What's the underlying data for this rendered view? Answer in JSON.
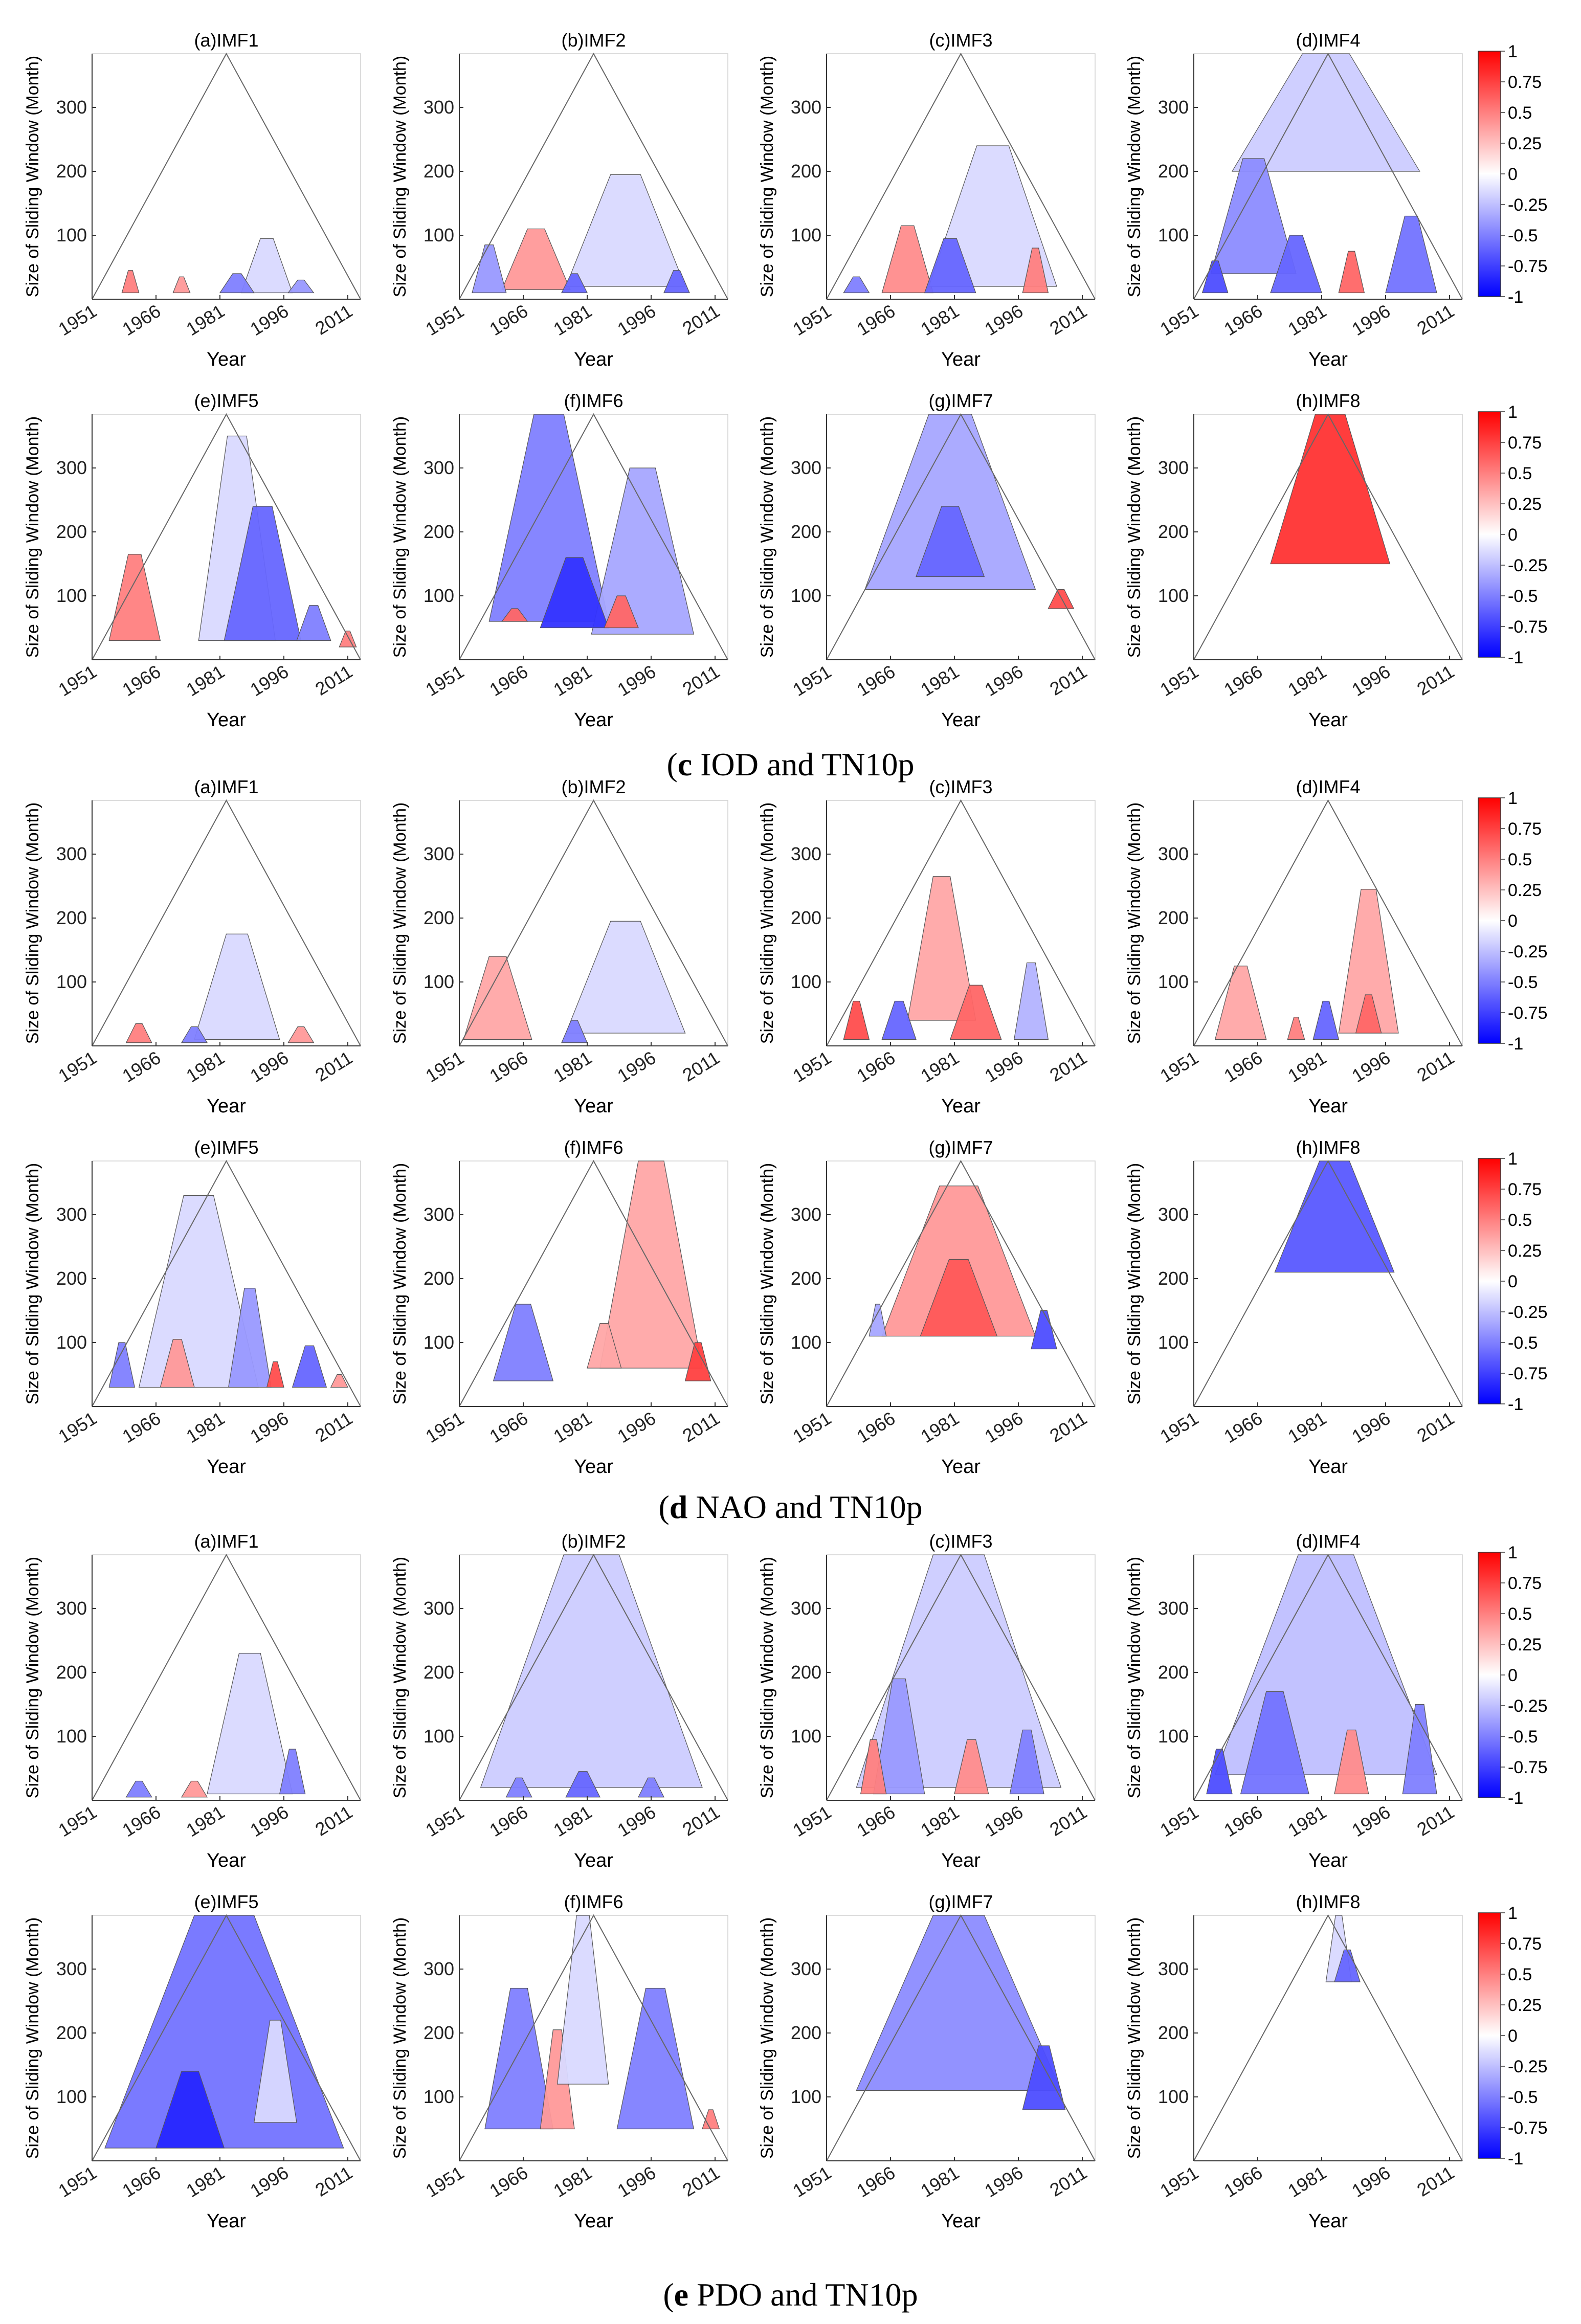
{
  "figure": {
    "panel_titles": [
      "(a)IMF1",
      "(b)IMF2",
      "(c)IMF3",
      "(d)IMF4",
      "(e)IMF5",
      "(f)IMF6",
      "(g)IMF7",
      "(h)IMF8"
    ],
    "xlabel": "Year",
    "ylabel": "Size of Sliding Window (Month)",
    "x_ticks": [
      "1951",
      "1966",
      "1981",
      "1996",
      "2011"
    ],
    "y_ticks": [
      "100",
      "200",
      "300"
    ],
    "colorbar_ticks": [
      "1",
      "0.75",
      "0.5",
      "0.25",
      "0",
      "-0.25",
      "-0.5",
      "-0.75",
      "-1"
    ],
    "colors": {
      "positive": "#ff0000",
      "negative": "#0000ff",
      "neutral": "#ffffff",
      "outline": "#555555"
    }
  },
  "captions": [
    {
      "letter": "c",
      "text": " IOD and TN10p"
    },
    {
      "letter": "d",
      "text": " NAO and TN10p"
    },
    {
      "letter": "e",
      "text": " PDO and TN10p"
    }
  ],
  "chart_data": [
    {
      "type": "heatmap",
      "group": "(c) IOD and TN10p",
      "description": "Triangular sliding-window correlation maps between IMF components of IOD and TN10p",
      "xlabel": "Year",
      "ylabel": "Size of Sliding Window (Month)",
      "xlim": [
        1951,
        2014
      ],
      "ylim": [
        0,
        384
      ],
      "clim": [
        -1,
        1
      ],
      "panels": [
        {
          "title": "(a)IMF1",
          "regions": [
            {
              "cx": 1960,
              "w": 2,
              "base": 10,
              "top": 45,
              "r": 0.5
            },
            {
              "cx": 1972,
              "w": 2,
              "base": 10,
              "top": 35,
              "r": 0.4
            },
            {
              "cx": 1992,
              "w": 6,
              "base": 10,
              "top": 95,
              "r": -0.15
            },
            {
              "cx": 1985,
              "w": 4,
              "base": 10,
              "top": 40,
              "r": -0.5
            },
            {
              "cx": 2000,
              "w": 3,
              "base": 10,
              "top": 30,
              "r": -0.4
            }
          ]
        },
        {
          "title": "(b)IMF2",
          "regions": [
            {
              "cx": 1969,
              "w": 8,
              "base": 15,
              "top": 110,
              "r": 0.4
            },
            {
              "cx": 1990,
              "w": 14,
              "base": 20,
              "top": 195,
              "r": -0.15
            },
            {
              "cx": 1958,
              "w": 4,
              "base": 10,
              "top": 85,
              "r": -0.4
            },
            {
              "cx": 1978,
              "w": 3,
              "base": 10,
              "top": 40,
              "r": -0.6
            },
            {
              "cx": 2002,
              "w": 3,
              "base": 10,
              "top": 45,
              "r": -0.6
            }
          ]
        },
        {
          "title": "(c)IMF3",
          "regions": [
            {
              "cx": 1970,
              "w": 6,
              "base": 10,
              "top": 115,
              "r": 0.45
            },
            {
              "cx": 1990,
              "w": 15,
              "base": 20,
              "top": 240,
              "r": -0.15
            },
            {
              "cx": 1980,
              "w": 6,
              "base": 10,
              "top": 95,
              "r": -0.6
            },
            {
              "cx": 2000,
              "w": 3,
              "base": 10,
              "top": 80,
              "r": 0.5
            },
            {
              "cx": 1958,
              "w": 3,
              "base": 10,
              "top": 35,
              "r": -0.5
            }
          ]
        },
        {
          "title": "(d)IMF4",
          "regions": [
            {
              "cx": 1982,
              "w": 22,
              "base": 200,
              "top": 384,
              "r": -0.2
            },
            {
              "cx": 1965,
              "w": 10,
              "base": 40,
              "top": 220,
              "r": -0.45
            },
            {
              "cx": 1975,
              "w": 6,
              "base": 10,
              "top": 100,
              "r": -0.6
            },
            {
              "cx": 1988,
              "w": 3,
              "base": 10,
              "top": 75,
              "r": 0.6
            },
            {
              "cx": 2002,
              "w": 6,
              "base": 10,
              "top": 130,
              "r": -0.55
            },
            {
              "cx": 1956,
              "w": 3,
              "base": 10,
              "top": 60,
              "r": -0.7
            }
          ]
        },
        {
          "title": "(e)IMF5",
          "regions": [
            {
              "cx": 1961,
              "w": 6,
              "base": 30,
              "top": 165,
              "r": 0.5
            },
            {
              "cx": 1985,
              "w": 9,
              "base": 30,
              "top": 350,
              "r": -0.15
            },
            {
              "cx": 1991,
              "w": 9,
              "base": 30,
              "top": 240,
              "r": -0.6
            },
            {
              "cx": 2003,
              "w": 4,
              "base": 30,
              "top": 85,
              "r": -0.5
            },
            {
              "cx": 2011,
              "w": 2,
              "base": 20,
              "top": 45,
              "r": 0.5
            }
          ]
        },
        {
          "title": "(f)IMF6",
          "regions": [
            {
              "cx": 1972,
              "w": 14,
              "base": 60,
              "top": 384,
              "r": -0.5
            },
            {
              "cx": 1994,
              "w": 12,
              "base": 40,
              "top": 300,
              "r": -0.35
            },
            {
              "cx": 1978,
              "w": 8,
              "base": 50,
              "top": 160,
              "r": -0.8
            },
            {
              "cx": 1989,
              "w": 4,
              "base": 50,
              "top": 100,
              "r": 0.6
            },
            {
              "cx": 1964,
              "w": 3,
              "base": 60,
              "top": 80,
              "r": 0.6
            }
          ]
        },
        {
          "title": "(g)IMF7",
          "regions": [
            {
              "cx": 1980,
              "w": 20,
              "base": 110,
              "top": 384,
              "r": -0.35
            },
            {
              "cx": 1980,
              "w": 8,
              "base": 130,
              "top": 240,
              "r": -0.6
            },
            {
              "cx": 2006,
              "w": 3,
              "base": 80,
              "top": 110,
              "r": 0.7
            }
          ]
        },
        {
          "title": "(h)IMF8",
          "regions": [
            {
              "cx": 1983,
              "w": 14,
              "base": 150,
              "top": 384,
              "r": 0.8
            }
          ]
        }
      ]
    },
    {
      "type": "heatmap",
      "group": "(d) NAO and TN10p",
      "description": "Triangular sliding-window correlation maps between IMF components of NAO and TN10p",
      "xlabel": "Year",
      "ylabel": "Size of Sliding Window (Month)",
      "xlim": [
        1951,
        2014
      ],
      "ylim": [
        0,
        384
      ],
      "clim": [
        -1,
        1
      ],
      "panels": [
        {
          "title": "(a)IMF1",
          "regions": [
            {
              "cx": 1985,
              "w": 10,
              "base": 10,
              "top": 175,
              "r": -0.15
            },
            {
              "cx": 1962,
              "w": 3,
              "base": 5,
              "top": 35,
              "r": 0.5
            },
            {
              "cx": 1975,
              "w": 3,
              "base": 5,
              "top": 30,
              "r": -0.5
            },
            {
              "cx": 2000,
              "w": 3,
              "base": 5,
              "top": 30,
              "r": 0.4
            }
          ]
        },
        {
          "title": "(b)IMF2",
          "regions": [
            {
              "cx": 1960,
              "w": 8,
              "base": 10,
              "top": 140,
              "r": 0.35
            },
            {
              "cx": 1990,
              "w": 14,
              "base": 20,
              "top": 195,
              "r": -0.15
            },
            {
              "cx": 1978,
              "w": 3,
              "base": 5,
              "top": 40,
              "r": -0.5
            }
          ]
        },
        {
          "title": "(c)IMF3",
          "regions": [
            {
              "cx": 1978,
              "w": 8,
              "base": 40,
              "top": 265,
              "r": 0.35
            },
            {
              "cx": 1986,
              "w": 6,
              "base": 10,
              "top": 95,
              "r": 0.6
            },
            {
              "cx": 1958,
              "w": 3,
              "base": 10,
              "top": 70,
              "r": 0.7
            },
            {
              "cx": 1968,
              "w": 4,
              "base": 10,
              "top": 70,
              "r": -0.6
            },
            {
              "cx": 1999,
              "w": 4,
              "base": 10,
              "top": 130,
              "r": -0.3
            }
          ]
        },
        {
          "title": "(d)IMF4",
          "regions": [
            {
              "cx": 1962,
              "w": 6,
              "base": 10,
              "top": 125,
              "r": 0.35
            },
            {
              "cx": 1992,
              "w": 7,
              "base": 20,
              "top": 245,
              "r": 0.35
            },
            {
              "cx": 1992,
              "w": 3,
              "base": 20,
              "top": 80,
              "r": 0.6
            },
            {
              "cx": 1982,
              "w": 3,
              "base": 10,
              "top": 70,
              "r": -0.6
            },
            {
              "cx": 1975,
              "w": 2,
              "base": 10,
              "top": 45,
              "r": 0.5
            }
          ]
        },
        {
          "title": "(e)IMF5",
          "regions": [
            {
              "cx": 1976,
              "w": 14,
              "base": 30,
              "top": 330,
              "r": -0.15
            },
            {
              "cx": 1988,
              "w": 5,
              "base": 30,
              "top": 185,
              "r": -0.4
            },
            {
              "cx": 1971,
              "w": 4,
              "base": 30,
              "top": 105,
              "r": 0.4
            },
            {
              "cx": 1958,
              "w": 3,
              "base": 30,
              "top": 100,
              "r": -0.5
            },
            {
              "cx": 2002,
              "w": 4,
              "base": 30,
              "top": 95,
              "r": -0.6
            },
            {
              "cx": 1994,
              "w": 2,
              "base": 30,
              "top": 70,
              "r": 0.7
            },
            {
              "cx": 2009,
              "w": 2,
              "base": 30,
              "top": 50,
              "r": 0.4
            }
          ]
        },
        {
          "title": "(f)IMF6",
          "regions": [
            {
              "cx": 1996,
              "w": 12,
              "base": 60,
              "top": 384,
              "r": 0.35
            },
            {
              "cx": 1966,
              "w": 7,
              "base": 40,
              "top": 160,
              "r": -0.5
            },
            {
              "cx": 1985,
              "w": 4,
              "base": 60,
              "top": 130,
              "r": 0.35
            },
            {
              "cx": 2007,
              "w": 3,
              "base": 40,
              "top": 100,
              "r": 0.75
            }
          ]
        },
        {
          "title": "(g)IMF7",
          "regions": [
            {
              "cx": 1982,
              "w": 18,
              "base": 110,
              "top": 345,
              "r": 0.4
            },
            {
              "cx": 1982,
              "w": 9,
              "base": 110,
              "top": 230,
              "r": 0.65
            },
            {
              "cx": 1963,
              "w": 2,
              "base": 110,
              "top": 160,
              "r": -0.35
            },
            {
              "cx": 2002,
              "w": 3,
              "base": 90,
              "top": 150,
              "r": -0.7
            }
          ]
        },
        {
          "title": "(h)IMF8",
          "regions": [
            {
              "cx": 1984,
              "w": 14,
              "base": 210,
              "top": 384,
              "r": -0.65
            }
          ]
        }
      ]
    },
    {
      "type": "heatmap",
      "group": "(e) PDO and TN10p",
      "description": "Triangular sliding-window correlation maps between IMF components of PDO and TN10p",
      "xlabel": "Year",
      "ylabel": "Size of Sliding Window (Month)",
      "xlim": [
        1951,
        2014
      ],
      "ylim": [
        0,
        384
      ],
      "clim": [
        -1,
        1
      ],
      "panels": [
        {
          "title": "(a)IMF1",
          "regions": [
            {
              "cx": 1988,
              "w": 10,
              "base": 10,
              "top": 230,
              "r": -0.15
            },
            {
              "cx": 1998,
              "w": 3,
              "base": 10,
              "top": 80,
              "r": -0.5
            },
            {
              "cx": 1962,
              "w": 3,
              "base": 5,
              "top": 30,
              "r": -0.5
            },
            {
              "cx": 1975,
              "w": 3,
              "base": 5,
              "top": 30,
              "r": 0.4
            }
          ]
        },
        {
          "title": "(b)IMF2",
          "regions": [
            {
              "cx": 1982,
              "w": 26,
              "base": 20,
              "top": 384,
              "r": -0.2
            },
            {
              "cx": 1980,
              "w": 4,
              "base": 5,
              "top": 45,
              "r": -0.6
            },
            {
              "cx": 1965,
              "w": 3,
              "base": 5,
              "top": 35,
              "r": -0.5
            },
            {
              "cx": 1996,
              "w": 3,
              "base": 5,
              "top": 35,
              "r": -0.5
            }
          ]
        },
        {
          "title": "(c)IMF3",
          "regions": [
            {
              "cx": 1982,
              "w": 24,
              "base": 20,
              "top": 384,
              "r": -0.2
            },
            {
              "cx": 1968,
              "w": 6,
              "base": 10,
              "top": 190,
              "r": -0.4
            },
            {
              "cx": 1962,
              "w": 3,
              "base": 10,
              "top": 95,
              "r": 0.5
            },
            {
              "cx": 1985,
              "w": 4,
              "base": 10,
              "top": 95,
              "r": 0.45
            },
            {
              "cx": 1998,
              "w": 4,
              "base": 10,
              "top": 110,
              "r": -0.5
            }
          ]
        },
        {
          "title": "(d)IMF4",
          "regions": [
            {
              "cx": 1982,
              "w": 26,
              "base": 40,
              "top": 384,
              "r": -0.25
            },
            {
              "cx": 1970,
              "w": 8,
              "base": 10,
              "top": 170,
              "r": -0.55
            },
            {
              "cx": 1988,
              "w": 4,
              "base": 10,
              "top": 110,
              "r": 0.45
            },
            {
              "cx": 1957,
              "w": 3,
              "base": 10,
              "top": 80,
              "r": -0.7
            },
            {
              "cx": 2004,
              "w": 4,
              "base": 10,
              "top": 150,
              "r": -0.5
            }
          ]
        },
        {
          "title": "(e)IMF5",
          "regions": [
            {
              "cx": 1982,
              "w": 28,
              "base": 20,
              "top": 384,
              "r": -0.55
            },
            {
              "cx": 1974,
              "w": 8,
              "base": 20,
              "top": 140,
              "r": -0.85
            },
            {
              "cx": 1994,
              "w": 5,
              "base": 60,
              "top": 220,
              "r": -0.15
            }
          ]
        },
        {
          "title": "(f)IMF6",
          "regions": [
            {
              "cx": 1965,
              "w": 8,
              "base": 50,
              "top": 270,
              "r": -0.5
            },
            {
              "cx": 1997,
              "w": 9,
              "base": 50,
              "top": 270,
              "r": -0.5
            },
            {
              "cx": 1974,
              "w": 4,
              "base": 50,
              "top": 205,
              "r": 0.4
            },
            {
              "cx": 1980,
              "w": 6,
              "base": 120,
              "top": 384,
              "r": -0.15
            },
            {
              "cx": 2010,
              "w": 2,
              "base": 50,
              "top": 80,
              "r": 0.5
            }
          ]
        },
        {
          "title": "(g)IMF7",
          "regions": [
            {
              "cx": 1982,
              "w": 24,
              "base": 110,
              "top": 384,
              "r": -0.45
            },
            {
              "cx": 2002,
              "w": 5,
              "base": 80,
              "top": 180,
              "r": -0.7
            }
          ]
        },
        {
          "title": "(h)IMF8",
          "regions": [
            {
              "cx": 1985,
              "w": 3,
              "base": 280,
              "top": 384,
              "r": -0.15
            },
            {
              "cx": 1987,
              "w": 3,
              "base": 280,
              "top": 330,
              "r": -0.6
            }
          ]
        }
      ]
    }
  ]
}
